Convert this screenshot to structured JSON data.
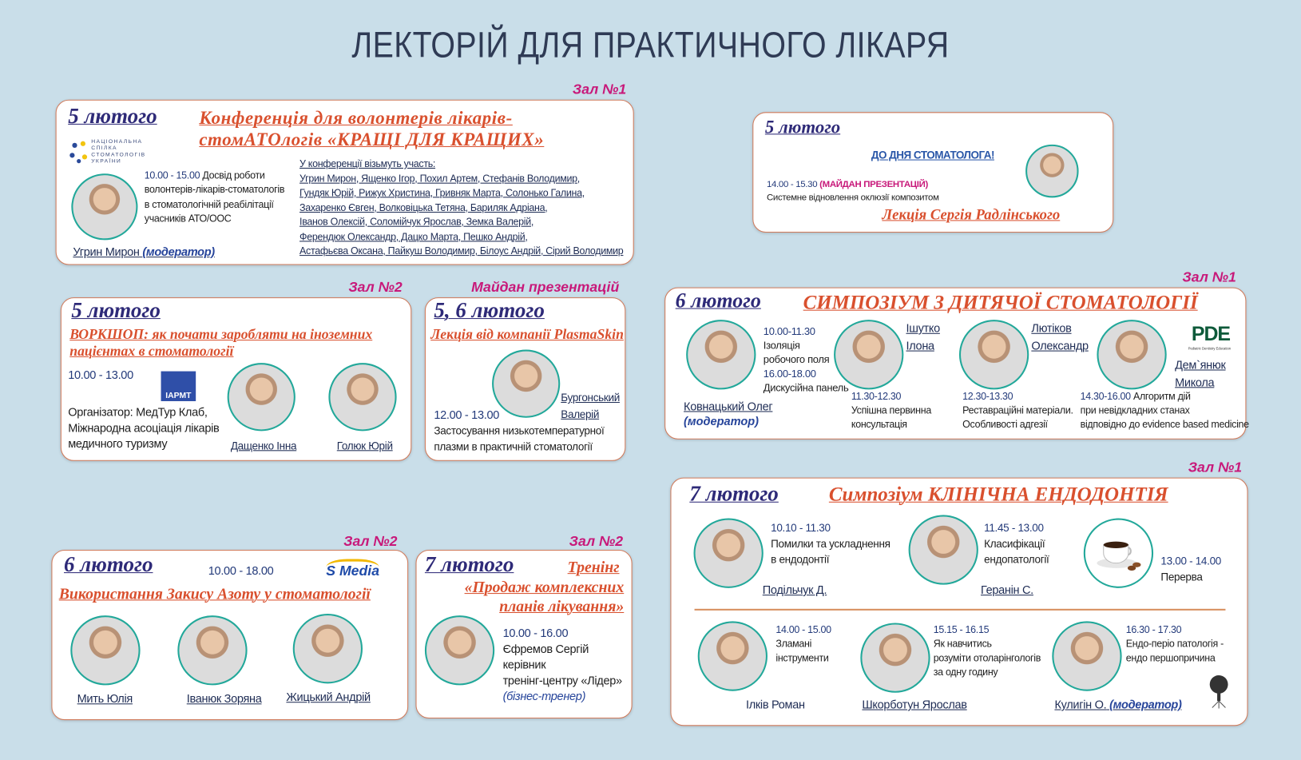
{
  "title": "ЛЕКТОРІЙ ДЛЯ ПРАКТИЧНОГО ЛІКАРЯ",
  "colors": {
    "background": "#c9dee9",
    "card_border": "#d07a5a",
    "date": "#2e2a78",
    "event_title": "#d9502e",
    "hall": "#c8197a",
    "avatar_ring": "#22a89a"
  },
  "conference": {
    "hall": "Зал №1",
    "date": "5 лютого",
    "title": [
      "Конференція для волонтерів лікарів-",
      "стомАТОлогів «КРАЩІ ДЛЯ КРАЩИХ»"
    ],
    "logo_text": [
      "НАЦІОНАЛЬНА",
      "СПІЛКА",
      "СТОМАТОЛОГІВ",
      "УКРАЇНИ"
    ],
    "time": "10.00 - 15.00",
    "talk": [
      "Досвід роботи",
      "волонтерів-лікарів-стоматологів",
      "в стоматологічній реабілітації",
      "учасників АТО/ООС"
    ],
    "moderator_name": "Угрин Мирон",
    "moderator_label": "(модератор)",
    "participants_header": "У конференції візьмуть участь:",
    "participants": [
      "Угрин Мирон, Ященко Ігор,  Похил Артем, Стефанів Володимир,",
      "Гундяк Юрій, Рижук Христина, Гривняк  Марта, Солонько Галина,",
      "Захаренко Євген, Волковіцька Тетяна, Бариляк Адріана,",
      "Іванов Олексій, Соломійчук Ярослав,  Земка Валерій,",
      "Ферендюк Олександр, Дацко Марта, Пешко Андрій,",
      "Астафьєва Оксана, Пайкуш Володимир,  Білоус Андрій, Сірий Володимир"
    ]
  },
  "radlinsky": {
    "date": "5 лютого",
    "heading": "ДО ДНЯ СТОМАТОЛОГА!",
    "time": "14.00 - 15.30",
    "place": "(МАЙДАН ПРЕЗЕНТАЦІЙ)",
    "talk": "Системне відновлення оклюзії композитом",
    "lecture": "Лекція Сергія Радлінського"
  },
  "workshop": {
    "hall": "Зал №2",
    "date": "5 лютого",
    "title": [
      "ВОРКШОП: як почати заробляти на іноземних",
      "пацієнтах в стоматології"
    ],
    "time": "10.00 - 13.00",
    "logo_text": "IAPMT",
    "organizer": [
      "Організатор: МедТур Клаб,",
      "Міжнародна асоціація лікарів",
      "медичного туризму"
    ],
    "speakers": [
      "Дащенко Інна",
      "Голюк Юрій"
    ]
  },
  "plasmaskin": {
    "hall": "Майдан презентацій",
    "date": "5, 6 лютого",
    "title": "Лекція від компанії PlasmaSkin",
    "speaker": [
      "Бургонський",
      "Валерій"
    ],
    "time": "12.00 - 13.00",
    "talk": [
      "Застосування низькотемпературної",
      "плазми в практичній стоматології"
    ]
  },
  "pediatric": {
    "hall": "Зал №1",
    "date": "6 лютого",
    "title": "СИМПОЗІУМ З ДИТЯЧОЇ СТОМАТОЛОГІЇ",
    "logo_text": "PDE",
    "logo_sub": "Pediatric Dentistry Education",
    "kovnatsky": {
      "lines": [
        "10.00-11.30",
        "Ізоляція",
        "робочого поля",
        "16.00-18.00",
        "Дискусійна панель"
      ],
      "name": "Ковнацький Олег",
      "role": "(модератор)"
    },
    "ishutko": {
      "name": [
        "Ішутко",
        "Ілона"
      ],
      "time": "11.30-12.30",
      "talk": [
        "Успішна первинна",
        "консультація"
      ]
    },
    "liutikov": {
      "name": [
        "Лютіков",
        "Олександр"
      ],
      "time": "12.30-13.30",
      "talk": [
        "Реставраційні матеріали.",
        "Особливості адгезії"
      ]
    },
    "demianiuk": {
      "name": [
        "Дем`янюк",
        "Микола"
      ],
      "time": "14.30-16.00",
      "talk": [
        "Алгоритм дій",
        "при невідкладних станах",
        "відповідно до evidence based medicine"
      ]
    }
  },
  "nitrous": {
    "hall": "Зал №2",
    "date": "6 лютого",
    "time": "10.00 - 18.00",
    "logo_text": "S Media",
    "title": "Використання Закису Азоту у стоматології",
    "speakers": [
      "Мить Юлія",
      "Іванюк Зоряна",
      "Жицький Андрій"
    ]
  },
  "training": {
    "hall": "Зал №2",
    "date": "7 лютого",
    "label": "Тренінг",
    "title": [
      "«Продаж комплексних",
      "планів лікування»"
    ],
    "time": "10.00 - 16.00",
    "lines": [
      "Єфремов Сергій",
      "керівник",
      "тренінг-центру «Лідер»"
    ],
    "role": "(бізнес-тренер)"
  },
  "endo": {
    "hall": "Зал №1",
    "date": "7 лютого",
    "title": "Симпозіум КЛІНІЧНА ЕНДОДОНТІЯ",
    "talks": [
      {
        "time": "10.10 - 11.30",
        "talk": [
          "Помилки та ускладнення",
          "в ендодонтії"
        ],
        "name": "Подільчук Д."
      },
      {
        "time": "11.45 - 13.00",
        "talk": [
          "Класифікації",
          "ендопатології"
        ],
        "name": "Геранін С."
      },
      {
        "time": "13.00 - 14.00",
        "talk": [
          "Перерва"
        ]
      },
      {
        "time": "14.00 - 15.00",
        "talk": [
          "Зламані",
          "інструменти"
        ],
        "name": "Ілків Роман"
      },
      {
        "time": "15.15 - 16.15",
        "talk": [
          "Як навчитись",
          "розуміти отоларінгологів",
          "за одну годину"
        ],
        "name": "Шкорботун Ярослав"
      },
      {
        "time": "16.30 - 17.30",
        "talk": [
          "Ендо-періо патологія -",
          "ендо першопричина"
        ],
        "name": "Кулигін О.",
        "role": "(модератор)"
      }
    ]
  }
}
